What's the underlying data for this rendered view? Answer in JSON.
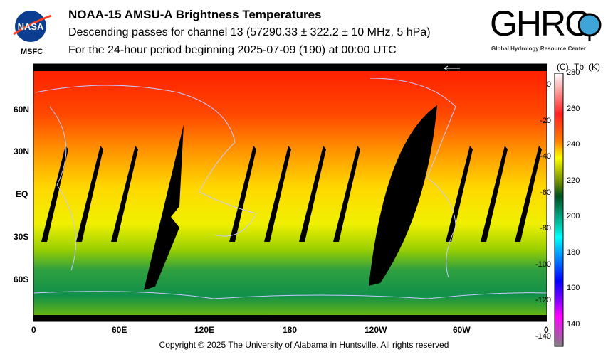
{
  "header": {
    "title": "NOAA-15 AMSU-A Brightness Temperatures",
    "subtitle1": "Descending passes for channel 13 (57290.33 ± 322.2 ± 10 MHz, 5 hPa)",
    "subtitle2": "For the 24-hour period beginning 2025-07-09 (190) at 00:00 UTC"
  },
  "logos": {
    "nasa": "NASA",
    "nasa_center": "MSFC",
    "ghrc": "GHRC",
    "ghrc_full": "Global Hydrology Resource Center"
  },
  "footer": "Copyright © 2025 The University of Alabama in Huntsville.  All rights reserved",
  "chart_data": {
    "type": "heatmap",
    "title": "NOAA-15 AMSU-A Brightness Temperatures",
    "x_ticks": [
      "0",
      "60E",
      "120E",
      "180",
      "120W",
      "60W",
      "0"
    ],
    "y_ticks": [
      "60N",
      "30N",
      "EQ",
      "30S",
      "60S"
    ],
    "colorbar": {
      "label_c": "(C)",
      "label_tb": "Tb",
      "label_k": "(K)",
      "k_ticks": [
        280,
        260,
        240,
        220,
        200,
        180,
        160,
        140
      ],
      "c_ticks": [
        0,
        -20,
        -40,
        -60,
        -80,
        -100,
        -120,
        -140
      ],
      "range_k": [
        128,
        280
      ]
    },
    "description_values": {
      "north_pole_k": 262,
      "tropics_k": 240,
      "southern_midlat_k": 210
    }
  },
  "colors": {
    "missing": "#000000",
    "coastline": "#c8c8ff"
  }
}
